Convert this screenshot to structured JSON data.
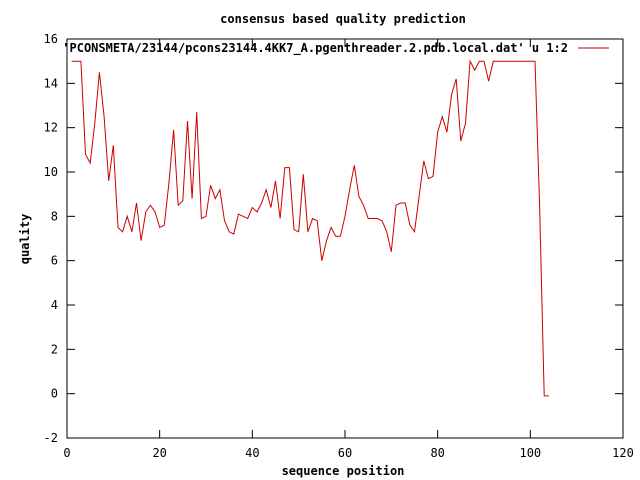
{
  "chart_data": {
    "type": "line",
    "title": "consensus based quality prediction",
    "xlabel": "sequence position",
    "ylabel": "quality",
    "xlim": [
      0,
      120
    ],
    "ylim": [
      -2,
      16
    ],
    "xticks": [
      0,
      20,
      40,
      60,
      80,
      100,
      120
    ],
    "yticks": [
      -2,
      0,
      2,
      4,
      6,
      8,
      10,
      12,
      14,
      16
    ],
    "grid": false,
    "legend_position": "top-right",
    "series": [
      {
        "name": "'PCONSMETA/23144/pcons23144.4KK7_A.pgenthreader.2.pdb.local.dat' u 1:2",
        "color": "#cc0000",
        "x": [
          1,
          2,
          3,
          4,
          5,
          6,
          7,
          8,
          9,
          10,
          11,
          12,
          13,
          14,
          15,
          16,
          17,
          18,
          19,
          20,
          21,
          22,
          23,
          24,
          25,
          26,
          27,
          28,
          29,
          30,
          31,
          32,
          33,
          34,
          35,
          36,
          37,
          38,
          39,
          40,
          41,
          42,
          43,
          44,
          45,
          46,
          47,
          48,
          49,
          50,
          51,
          52,
          53,
          54,
          55,
          56,
          57,
          58,
          59,
          60,
          61,
          62,
          63,
          64,
          65,
          66,
          67,
          68,
          69,
          70,
          71,
          72,
          73,
          74,
          75,
          76,
          77,
          78,
          79,
          80,
          81,
          82,
          83,
          84,
          85,
          86,
          87,
          88,
          89,
          90,
          91,
          92,
          93,
          94,
          95,
          96,
          97,
          98,
          99,
          100,
          101,
          102,
          103,
          104
        ],
        "y": [
          15,
          15,
          15,
          10.8,
          10.4,
          12.2,
          14.5,
          12.5,
          9.6,
          11.2,
          7.5,
          7.3,
          8.0,
          7.3,
          8.6,
          6.9,
          8.2,
          8.5,
          8.2,
          7.5,
          7.6,
          9.5,
          11.9,
          8.5,
          8.7,
          12.3,
          8.8,
          12.7,
          7.9,
          8.0,
          9.4,
          8.8,
          9.2,
          7.8,
          7.3,
          7.2,
          8.1,
          8.0,
          7.9,
          8.4,
          8.2,
          8.6,
          9.2,
          8.4,
          9.6,
          7.9,
          10.2,
          10.2,
          7.4,
          7.3,
          9.9,
          7.3,
          7.9,
          7.8,
          6.0,
          6.9,
          7.5,
          7.1,
          7.1,
          8.0,
          9.2,
          10.3,
          8.9,
          8.5,
          7.9,
          7.9,
          7.9,
          7.8,
          7.3,
          6.4,
          8.5,
          8.6,
          8.6,
          7.6,
          7.3,
          8.9,
          10.5,
          9.7,
          9.8,
          11.8,
          12.5,
          11.8,
          13.5,
          14.2,
          11.4,
          12.2,
          15.0,
          14.6,
          15.0,
          15.0,
          14.1,
          15.0,
          15.0,
          15.0,
          15.0,
          15.0,
          15.0,
          15.0,
          15.0,
          15.0,
          15.0,
          8.5,
          -0.1,
          -0.1
        ]
      }
    ]
  }
}
